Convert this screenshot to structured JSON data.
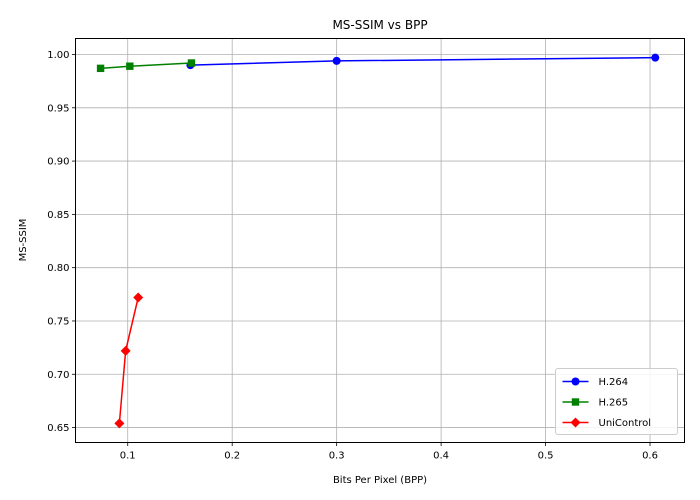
{
  "chart_data": {
    "type": "line",
    "title": "MS-SSIM vs BPP",
    "xlabel": "Bits Per Pixel (BPP)",
    "ylabel": "MS-SSIM",
    "xlim": [
      0.05,
      0.633
    ],
    "ylim": [
      0.636,
      1.015
    ],
    "x_ticks": [
      0.1,
      0.2,
      0.3,
      0.4,
      0.5,
      0.6
    ],
    "x_tick_labels": [
      "0.1",
      "0.2",
      "0.3",
      "0.4",
      "0.5",
      "0.6"
    ],
    "y_ticks": [
      0.65,
      0.7,
      0.75,
      0.8,
      0.85,
      0.9,
      0.95,
      1.0
    ],
    "y_tick_labels": [
      "0.65",
      "0.70",
      "0.75",
      "0.80",
      "0.85",
      "0.90",
      "0.95",
      "1.00"
    ],
    "grid": true,
    "legend_position": "lower-right",
    "series": [
      {
        "name": "H.264",
        "color": "#0000ff",
        "marker": "circle",
        "x": [
          0.16,
          0.3,
          0.605
        ],
        "y": [
          0.99,
          0.994,
          0.997
        ]
      },
      {
        "name": "H.265",
        "color": "#008000",
        "marker": "square",
        "x": [
          0.074,
          0.102,
          0.161
        ],
        "y": [
          0.987,
          0.989,
          0.992
        ]
      },
      {
        "name": "UniControl",
        "color": "#ff0000",
        "marker": "diamond",
        "x": [
          0.092,
          0.098,
          0.11
        ],
        "y": [
          0.654,
          0.722,
          0.772
        ]
      }
    ]
  }
}
